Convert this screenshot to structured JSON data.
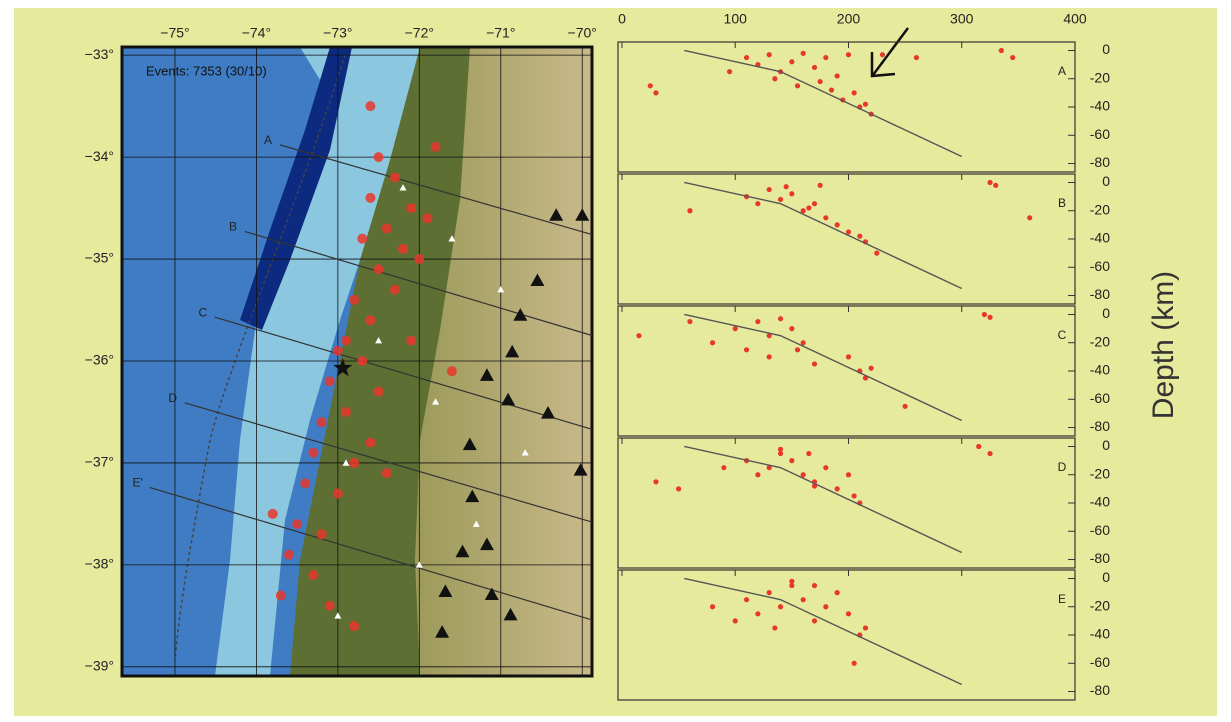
{
  "y_axis_label": "Depth (km)",
  "chart_data": [
    {
      "type": "map",
      "annotation": "Events: 7353 (30/10)",
      "xlim": [
        -75.65,
        -69.88
      ],
      "ylim": [
        -39.09,
        -32.92
      ],
      "xticks": [
        {
          "value": -75,
          "label": "−75°"
        },
        {
          "value": -74,
          "label": "−74°"
        },
        {
          "value": -73,
          "label": "−73°"
        },
        {
          "value": -72,
          "label": "−72°"
        },
        {
          "value": -71,
          "label": "−71°"
        },
        {
          "value": -70,
          "label": "−70°"
        }
      ],
      "yticks": [
        {
          "value": -33,
          "label": "−33°"
        },
        {
          "value": -34,
          "label": "−34°"
        },
        {
          "value": -35,
          "label": "−35°"
        },
        {
          "value": -36,
          "label": "−36°"
        },
        {
          "value": -37,
          "label": "−37°"
        },
        {
          "value": -38,
          "label": "−38°"
        },
        {
          "value": -39,
          "label": "−39°"
        }
      ],
      "grid": true,
      "epicenters": {
        "color": "#e8372c",
        "lon": [
          -72.5,
          -72.3,
          -72.6,
          -72.1,
          -72.4,
          -72.7,
          -72.2,
          -72.5,
          -72.0,
          -72.3,
          -72.8,
          -72.6,
          -72.9,
          -73.0,
          -72.7,
          -73.1,
          -72.5,
          -72.9,
          -73.2,
          -72.6,
          -73.3,
          -72.8,
          -73.4,
          -73.0,
          -72.4,
          -73.5,
          -73.2,
          -73.6,
          -73.3,
          -73.7,
          -73.1,
          -72.8,
          -71.9,
          -72.1,
          -71.6,
          -71.8,
          -72.6,
          -73.8
        ],
        "lat": [
          -34.0,
          -34.2,
          -34.4,
          -34.5,
          -34.7,
          -34.8,
          -34.9,
          -35.1,
          -35.0,
          -35.3,
          -35.4,
          -35.6,
          -35.8,
          -35.9,
          -36.0,
          -36.2,
          -36.3,
          -36.5,
          -36.6,
          -36.8,
          -36.9,
          -37.0,
          -37.2,
          -37.3,
          -37.1,
          -37.6,
          -37.7,
          -37.9,
          -38.1,
          -38.3,
          -38.4,
          -38.6,
          -34.6,
          -35.8,
          -36.1,
          -33.9,
          -33.5,
          -37.5
        ]
      },
      "sections": [
        {
          "label": "A",
          "lon": [
            -73.71,
            -69.88
          ],
          "lat": [
            -33.88,
            -34.76
          ]
        },
        {
          "label": "B",
          "lon": [
            -74.14,
            -69.88
          ],
          "lat": [
            -34.73,
            -35.75
          ]
        },
        {
          "label": "C",
          "lon": [
            -74.51,
            -69.88
          ],
          "lat": [
            -35.57,
            -36.67
          ]
        },
        {
          "label": "D",
          "lon": [
            -74.88,
            -69.88
          ],
          "lat": [
            -36.41,
            -37.58
          ]
        },
        {
          "label": "E'",
          "lon": [
            -75.31,
            -69.88
          ],
          "lat": [
            -37.24,
            -38.54
          ]
        }
      ],
      "volcanoes": {
        "color": "#111111",
        "lon": [
          -70.32,
          -70.0,
          -70.55,
          -70.76,
          -70.86,
          -71.17,
          -70.91,
          -70.42,
          -70.02,
          -71.38,
          -71.35,
          -71.17,
          -71.47,
          -71.68,
          -71.11,
          -70.88,
          -71.72
        ],
        "lat": [
          -34.57,
          -34.57,
          -35.21,
          -35.55,
          -35.91,
          -36.14,
          -36.38,
          -36.51,
          -37.07,
          -36.82,
          -37.33,
          -37.8,
          -37.87,
          -38.26,
          -38.29,
          -38.49,
          -38.66
        ]
      },
      "stations": {
        "color": "#ffffff",
        "lon": [
          -72.2,
          -71.6,
          -71.0,
          -72.5,
          -71.8,
          -70.7,
          -72.9,
          -71.3,
          -72.0,
          -73.0
        ],
        "lat": [
          -34.3,
          -34.8,
          -35.3,
          -35.8,
          -36.4,
          -36.9,
          -37.0,
          -37.6,
          -38.0,
          -38.5
        ]
      },
      "mainshock": {
        "lon": -72.94,
        "lat": -36.07,
        "color": "#111111"
      }
    },
    {
      "type": "scatter",
      "label": "A",
      "color": "#e8372c",
      "xlim": [
        -3.5,
        400
      ],
      "ylim": [
        -86,
        6
      ],
      "xticks": [
        0,
        100,
        200,
        300,
        400
      ],
      "yticks": [
        0,
        -20,
        -40,
        -60,
        -80
      ],
      "x": [
        25,
        30,
        95,
        110,
        120,
        130,
        140,
        150,
        160,
        170,
        180,
        190,
        200,
        135,
        155,
        175,
        185,
        195,
        205,
        210,
        215,
        220,
        230,
        260,
        335,
        345
      ],
      "y": [
        -25,
        -30,
        -15,
        -5,
        -10,
        -3,
        -15,
        -8,
        -2,
        -12,
        -5,
        -18,
        -3,
        -20,
        -25,
        -22,
        -28,
        -35,
        -30,
        -40,
        -38,
        -45,
        -3,
        -5,
        0,
        -5
      ],
      "slab": {
        "x": [
          55,
          140,
          300
        ],
        "y": [
          0,
          -15,
          -75
        ]
      }
    },
    {
      "type": "scatter",
      "label": "B",
      "color": "#e8372c",
      "xlim": [
        -3.5,
        400
      ],
      "ylim": [
        -86,
        6
      ],
      "xticks": [
        0,
        100,
        200,
        300,
        400
      ],
      "yticks": [
        0,
        -20,
        -40,
        -60,
        -80
      ],
      "x": [
        60,
        110,
        120,
        130,
        140,
        150,
        160,
        170,
        180,
        190,
        200,
        210,
        215,
        145,
        165,
        175,
        225,
        325,
        330,
        360
      ],
      "y": [
        -20,
        -10,
        -15,
        -5,
        -12,
        -8,
        -20,
        -15,
        -25,
        -30,
        -35,
        -38,
        -42,
        -3,
        -18,
        -2,
        -50,
        0,
        -2,
        -25
      ],
      "slab": {
        "x": [
          55,
          140,
          300
        ],
        "y": [
          0,
          -15,
          -75
        ]
      }
    },
    {
      "type": "scatter",
      "label": "C",
      "color": "#e8372c",
      "xlim": [
        -3.5,
        400
      ],
      "ylim": [
        -86,
        6
      ],
      "xticks": [
        0,
        100,
        200,
        300,
        400
      ],
      "yticks": [
        0,
        -20,
        -40,
        -60,
        -80
      ],
      "x": [
        15,
        60,
        80,
        100,
        110,
        120,
        130,
        140,
        150,
        160,
        170,
        130,
        155,
        200,
        210,
        215,
        220,
        250,
        320,
        325
      ],
      "y": [
        -15,
        -5,
        -20,
        -10,
        -25,
        -5,
        -15,
        -3,
        -10,
        -20,
        -35,
        -30,
        -25,
        -30,
        -40,
        -45,
        -38,
        -65,
        0,
        -2
      ],
      "slab": {
        "x": [
          55,
          140,
          300
        ],
        "y": [
          0,
          -15,
          -75
        ]
      }
    },
    {
      "type": "scatter",
      "label": "D",
      "color": "#e8372c",
      "xlim": [
        -3.5,
        400
      ],
      "ylim": [
        -86,
        6
      ],
      "xticks": [
        0,
        100,
        200,
        300,
        400
      ],
      "yticks": [
        0,
        -20,
        -40,
        -60,
        -80
      ],
      "x": [
        30,
        50,
        90,
        110,
        120,
        130,
        140,
        150,
        160,
        170,
        180,
        190,
        200,
        205,
        210,
        140,
        165,
        170,
        315,
        325
      ],
      "y": [
        -25,
        -30,
        -15,
        -10,
        -20,
        -15,
        -5,
        -10,
        -20,
        -25,
        -15,
        -30,
        -20,
        -35,
        -40,
        -2,
        -5,
        -28,
        0,
        -5
      ],
      "slab": {
        "x": [
          55,
          140,
          300
        ],
        "y": [
          0,
          -15,
          -75
        ]
      }
    },
    {
      "type": "scatter",
      "label": "E",
      "color": "#e8372c",
      "xlim": [
        -3.5,
        400
      ],
      "ylim": [
        -86,
        6
      ],
      "xticks": [
        0,
        100,
        200,
        300,
        400
      ],
      "yticks": [
        0,
        -20,
        -40,
        -60,
        -80
      ],
      "x": [
        80,
        100,
        110,
        120,
        130,
        140,
        150,
        160,
        170,
        180,
        190,
        200,
        135,
        150,
        170,
        210,
        215,
        205
      ],
      "y": [
        -20,
        -30,
        -15,
        -25,
        -10,
        -20,
        -5,
        -15,
        -30,
        -20,
        -10,
        -25,
        -35,
        -2,
        -5,
        -40,
        -35,
        -60
      ],
      "slab": {
        "x": [
          55,
          140,
          300
        ],
        "y": [
          0,
          -15,
          -75
        ]
      }
    }
  ]
}
